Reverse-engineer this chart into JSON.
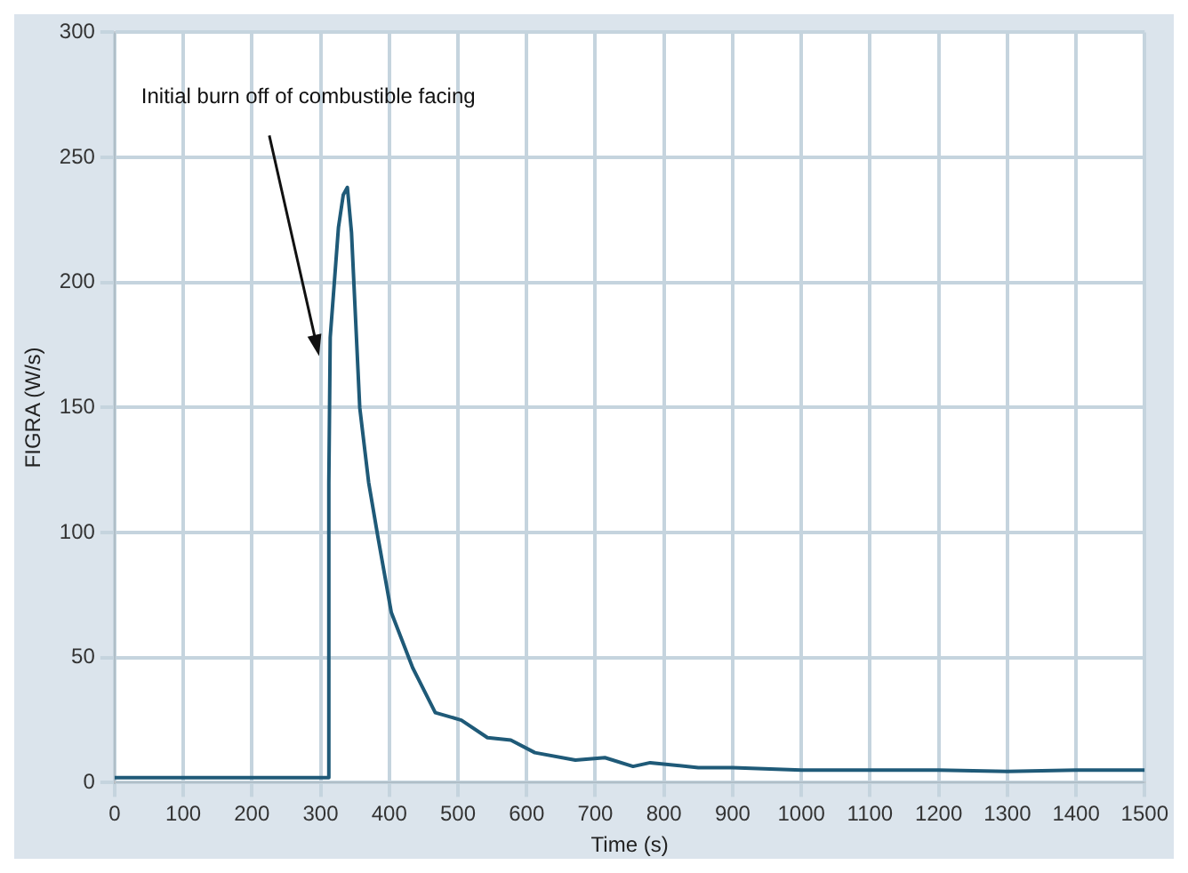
{
  "chart_data": {
    "type": "line",
    "xlabel": "Time (s)",
    "ylabel": "FIGRA (W/s)",
    "xlim": [
      0,
      1500
    ],
    "ylim": [
      0,
      300
    ],
    "xticks": [
      0,
      100,
      200,
      300,
      400,
      500,
      600,
      700,
      800,
      900,
      1000,
      1100,
      1200,
      1300,
      1400,
      1500
    ],
    "yticks": [
      0,
      50,
      100,
      150,
      200,
      250,
      300
    ],
    "grid": true,
    "legend": false,
    "marker": "none",
    "line_style": "solid",
    "annotations": [
      "Initial burn off of combustible facing"
    ],
    "series": [
      {
        "color": "#1f5a78",
        "x": [
          0,
          100,
          200,
          300,
          311,
          312,
          314,
          326,
          333,
          339,
          345,
          357,
          370,
          383,
          403,
          434,
          467,
          505,
          543,
          577,
          612,
          671,
          714,
          755,
          780,
          850,
          900,
          1000,
          1100,
          1200,
          1300,
          1400,
          1500
        ],
        "values": [
          2,
          2,
          2,
          2,
          2,
          120,
          178,
          222,
          235,
          238,
          220,
          150,
          120,
          99,
          68,
          46,
          28,
          25,
          18,
          17,
          12,
          9,
          10,
          6.5,
          8,
          6,
          6,
          5,
          5,
          5,
          4.5,
          5,
          5
        ]
      }
    ]
  }
}
